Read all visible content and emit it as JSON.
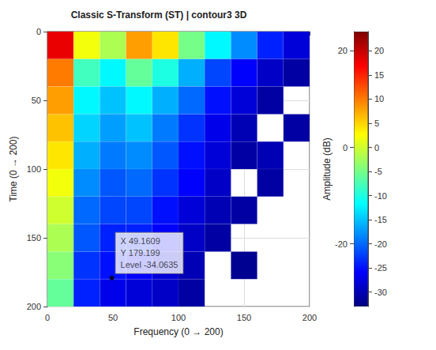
{
  "chart_data": {
    "type": "heatmap",
    "title": "Classic S-Transform (ST) | contour3 3D",
    "x_label": "Frequency (0 → 200)",
    "y_label": "Time (0 → 200)",
    "z_label": "Amplitude (dB)",
    "xlim": [
      0,
      200
    ],
    "xticks": [
      0,
      50,
      100,
      150,
      200
    ],
    "ylim": [
      0,
      200
    ],
    "yticks": [
      0,
      50,
      100,
      150,
      200
    ],
    "zlim": [
      -33,
      24
    ],
    "zticks": [
      -20,
      0,
      20
    ],
    "grid": true,
    "x_bins": [
      0,
      20,
      40,
      60,
      80,
      100,
      120,
      140,
      160,
      180,
      200
    ],
    "y_bins": [
      0,
      20,
      40,
      60,
      80,
      100,
      120,
      140,
      160,
      180,
      200
    ],
    "values": [
      [
        18,
        2,
        -2,
        8,
        4,
        -5,
        -12,
        -18,
        -24,
        -28
      ],
      [
        10,
        -8,
        -12,
        -6,
        -10,
        -16,
        -22,
        -26,
        -29,
        -31
      ],
      [
        8,
        -12,
        -15,
        -12,
        -16,
        -20,
        -25,
        -28,
        -31,
        null
      ],
      [
        6,
        -14,
        -17,
        -15,
        -19,
        -23,
        -27,
        -30,
        null,
        -31
      ],
      [
        4,
        -16,
        -19,
        -18,
        -21,
        -25,
        -28,
        -31,
        -30,
        null
      ],
      [
        2,
        -18,
        -21,
        -20,
        -23,
        -26,
        -29,
        null,
        -31,
        null
      ],
      [
        0,
        -20,
        -22,
        -22,
        -25,
        -28,
        -30,
        -31,
        null,
        null
      ],
      [
        -2,
        -21,
        -24,
        -24,
        -26,
        -29,
        -31,
        null,
        null,
        null
      ],
      [
        -4,
        -23,
        -25,
        -26,
        -28,
        -30,
        null,
        -32,
        null,
        null
      ],
      [
        -6,
        -24,
        -27,
        -28,
        -29,
        -31,
        null,
        null,
        null,
        null
      ]
    ],
    "colorbar": {
      "lim": [
        -33,
        24
      ],
      "ticks": [
        -30,
        -25,
        -20,
        -15,
        -10,
        -5,
        0,
        5,
        10,
        15,
        20
      ]
    },
    "annotations": [
      {
        "x": 49.1609,
        "y": 179.199,
        "level": -34.0635,
        "lines": [
          "X 49.1609",
          "Y 179.199",
          "Level -34.0635"
        ]
      }
    ]
  }
}
